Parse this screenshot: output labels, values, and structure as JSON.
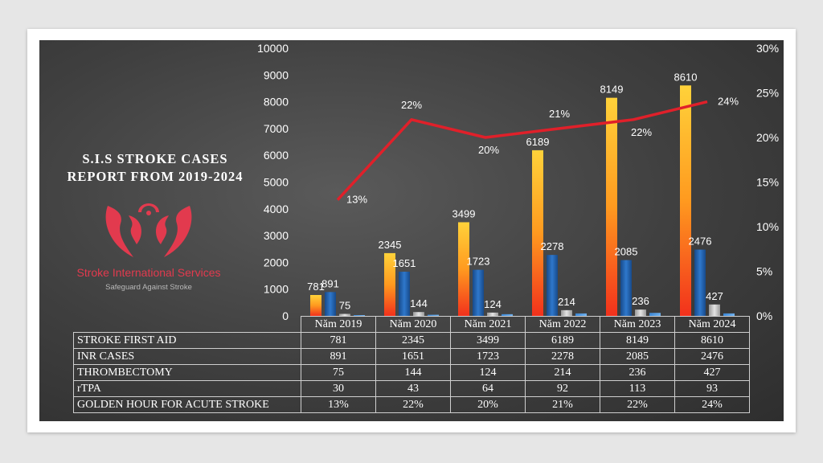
{
  "title_lines": [
    "S.I.S STROKE CASES",
    "REPORT FROM 2019-2024"
  ],
  "logo": {
    "org_name": "Stroke International Services",
    "tagline": "Safeguard Against Stroke",
    "color": "#e23a4e"
  },
  "colors": {
    "stroke_first_aid": "#f5a623",
    "inr_cases": "#1e5fa8",
    "thrombectomy": "#c8c8c8",
    "rtpa": "#2f7fd0",
    "golden_hour": "#e0202a"
  },
  "chart_data": {
    "type": "bar",
    "categories": [
      "Năm 2019",
      "Năm 2020",
      "Năm 2021",
      "Năm 2022",
      "Năm 2023",
      "Năm 2024"
    ],
    "series": [
      {
        "name": "STROKE FIRST AID",
        "values": [
          781,
          2345,
          3499,
          6189,
          8149,
          8610
        ],
        "display": [
          "781",
          "2345",
          "3499",
          "6189",
          "8149",
          "8610"
        ]
      },
      {
        "name": "INR CASES",
        "values": [
          891,
          1651,
          1723,
          2278,
          2085,
          2476
        ],
        "display": [
          "891",
          "1651",
          "1723",
          "2278",
          "2085",
          "2476"
        ]
      },
      {
        "name": "THROMBECTOMY",
        "values": [
          75,
          144,
          124,
          214,
          236,
          427
        ],
        "display": [
          "75",
          "144",
          "124",
          "214",
          "236",
          "427"
        ]
      },
      {
        "name": "rTPA",
        "values": [
          30,
          43,
          64,
          92,
          113,
          93
        ],
        "display": [
          "30",
          "43",
          "64",
          "92",
          "113",
          "93"
        ]
      },
      {
        "name": "GOLDEN HOUR FOR ACUTE STROKE",
        "type": "line",
        "axis": "right",
        "values": [
          13,
          22,
          20,
          21,
          22,
          24
        ],
        "display": [
          "13%",
          "22%",
          "20%",
          "21%",
          "22%",
          "24%"
        ]
      }
    ],
    "ylim": [
      0,
      10000
    ],
    "y_ticks": [
      "0",
      "1000",
      "2000",
      "3000",
      "4000",
      "5000",
      "6000",
      "7000",
      "8000",
      "9000",
      "10000"
    ],
    "y2lim": [
      0,
      30
    ],
    "y2_ticks": [
      "0%",
      "5%",
      "10%",
      "15%",
      "20%",
      "25%",
      "30%"
    ],
    "data_table": true,
    "grid": false
  }
}
